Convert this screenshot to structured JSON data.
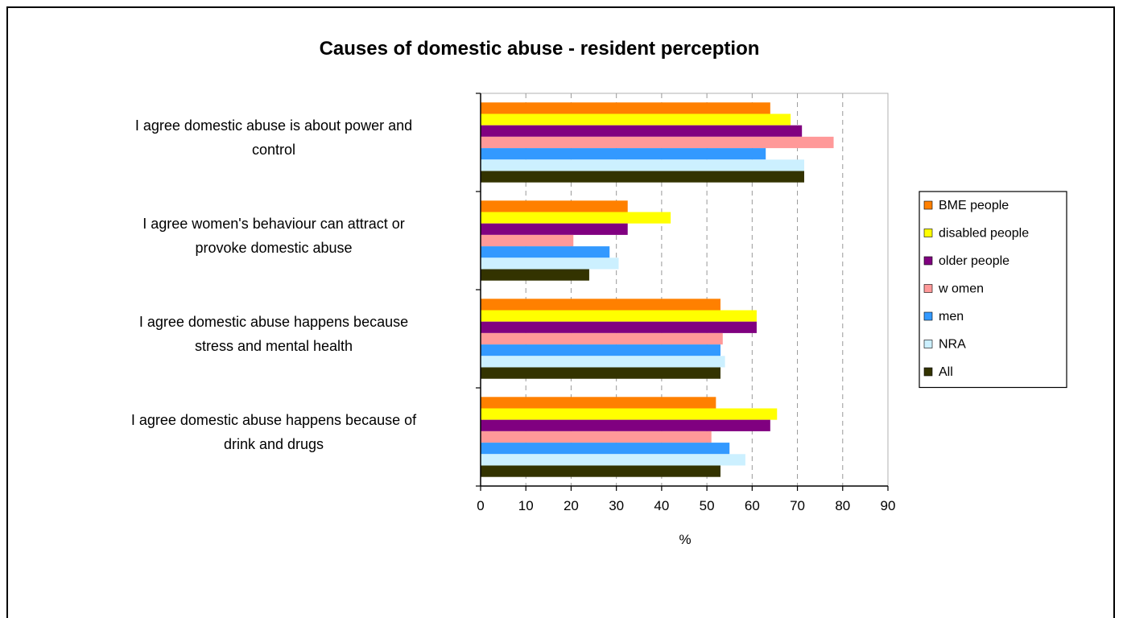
{
  "chart_data": {
    "type": "bar",
    "orientation": "horizontal",
    "title": "Causes of domestic abuse - resident perception",
    "xlabel": "%",
    "ylabel": "",
    "xlim": [
      0,
      90
    ],
    "xticks": [
      "0",
      "10",
      "20",
      "30",
      "40",
      "50",
      "60",
      "70",
      "80",
      "90"
    ],
    "grid": "vertical dashed",
    "legend_position": "right",
    "categories": [
      [
        "I agree domestic abuse is about power and",
        "control"
      ],
      [
        "I agree women's behaviour can attract or",
        "provoke domestic abuse"
      ],
      [
        "I agree domestic abuse happens because",
        "stress and mental health"
      ],
      [
        "I agree domestic abuse happens because of",
        "drink and drugs"
      ]
    ],
    "series": [
      {
        "name": "BME people",
        "color": "#ff8000",
        "values": [
          64,
          32.5,
          53,
          52
        ]
      },
      {
        "name": "disabled people",
        "color": "#ffff00",
        "values": [
          68.5,
          42,
          61,
          65.5
        ]
      },
      {
        "name": "older people",
        "color": "#800080",
        "values": [
          71,
          32.5,
          61,
          64
        ]
      },
      {
        "name": "w omen",
        "color": "#ff9999",
        "values": [
          78,
          20.5,
          53.5,
          51
        ]
      },
      {
        "name": "men",
        "color": "#3399ff",
        "values": [
          63,
          28.5,
          53,
          55
        ]
      },
      {
        "name": "NRA",
        "color": "#ccf0ff",
        "values": [
          71.5,
          30.5,
          54,
          58.5
        ]
      },
      {
        "name": "All",
        "color": "#333300",
        "values": [
          71.5,
          24,
          53,
          53
        ]
      }
    ]
  }
}
